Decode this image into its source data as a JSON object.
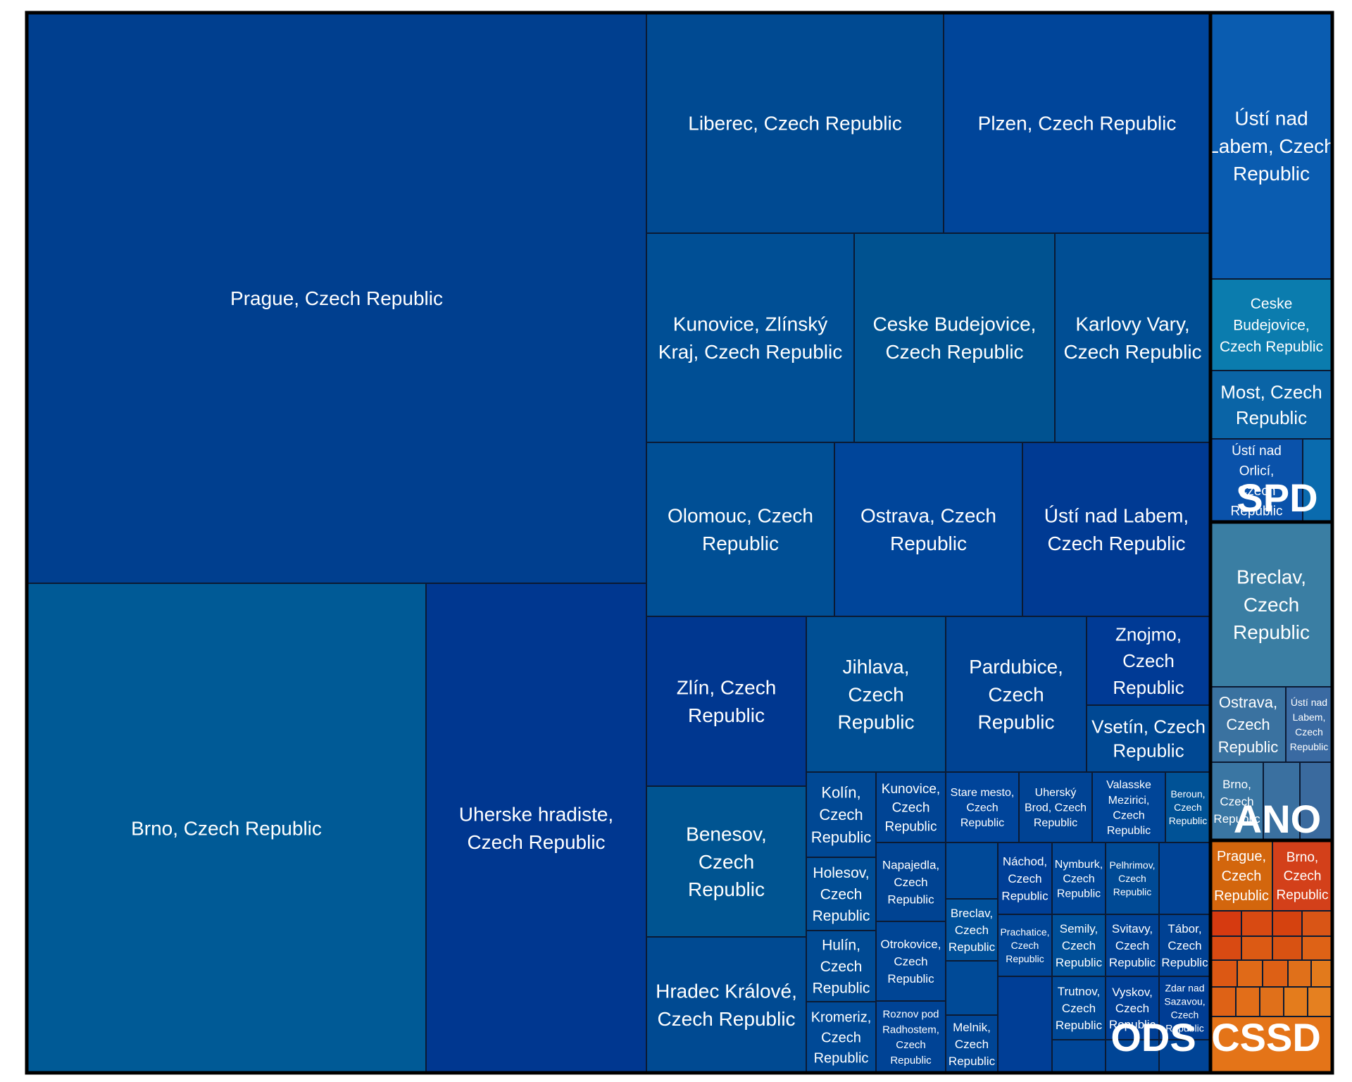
{
  "chart_data": {
    "type": "treemap",
    "groups": [
      {
        "name": "ODS",
        "items": [
          {
            "label": "Prague, Czech Republic",
            "color": "#003f8f"
          },
          {
            "label": "Brno, Czech Republic",
            "color": "#005a96"
          },
          {
            "label": "Uherske hradiste, Czech Republic",
            "color": "#003790"
          },
          {
            "label": "Liberec, Czech Republic",
            "color": "#004a92"
          },
          {
            "label": "Plzen, Czech Republic",
            "color": "#00459a"
          },
          {
            "label": "Kunovice, Zlínský Kraj, Czech Republic",
            "color": "#004f95"
          },
          {
            "label": "Ceske Budejovice, Czech Republic",
            "color": "#005290"
          },
          {
            "label": "Karlovy Vary, Czech Republic",
            "color": "#004e94"
          },
          {
            "label": "Olomouc, Czech Republic",
            "color": "#004f95"
          },
          {
            "label": "Ostrava, Czech Republic",
            "color": "#00459a"
          },
          {
            "label": "Ústí nad Labem, Czech Republic",
            "color": "#003a93"
          },
          {
            "label": "Zlín, Czech Republic",
            "color": "#003790"
          },
          {
            "label": "Jihlava, Czech Republic",
            "color": "#004f94"
          },
          {
            "label": "Pardubice, Czech Republic",
            "color": "#004393"
          },
          {
            "label": "Znojmo, Czech Republic",
            "color": "#003a95"
          },
          {
            "label": "Vsetín, Czech Republic",
            "color": "#004893"
          },
          {
            "label": "Benesov, Czech Republic",
            "color": "#005491"
          },
          {
            "label": "Hradec Králové, Czech Republic",
            "color": "#004a92"
          },
          {
            "label": "Kolín, Czech Republic",
            "color": "#004894"
          },
          {
            "label": "Kunovice, Czech Republic",
            "color": "#004494"
          },
          {
            "label": "Stare mesto, Czech Republic",
            "color": "#00449a"
          },
          {
            "label": "Uherský Brod, Czech Republic",
            "color": "#004394"
          },
          {
            "label": "Valasske Mezirici, Czech Republic",
            "color": "#004598"
          },
          {
            "label": "Beroun, Czech Republic",
            "color": "#005296"
          },
          {
            "label": "Holesov, Czech Republic",
            "color": "#004c94"
          },
          {
            "label": "Napajedla, Czech Republic",
            "color": "#004392"
          },
          {
            "label": "Náchod, Czech Republic",
            "color": "#003f97"
          },
          {
            "label": "Nymburk, Czech Republic",
            "color": "#004698"
          },
          {
            "label": "Pelhrimov, Czech Republic",
            "color": "#004a95"
          },
          {
            "label": "Hulín, Czech Republic",
            "color": "#004a93"
          },
          {
            "label": "Otrokovice, Czech Republic",
            "color": "#004595"
          },
          {
            "label": "Breclav, Czech Republic",
            "color": "#00509a"
          },
          {
            "label": "Prachatice, Czech Republic",
            "color": "#004597"
          },
          {
            "label": "Semily, Czech Republic",
            "color": "#004f98"
          },
          {
            "label": "Svitavy, Czech Republic",
            "color": "#004295"
          },
          {
            "label": "Tábor, Czech Republic",
            "color": "#004193"
          },
          {
            "label": "Trutnov, Czech Republic",
            "color": "#004896"
          },
          {
            "label": "Vyskov, Czech Republic",
            "color": "#003f95"
          },
          {
            "label": "Zdar nad Sazavou, Czech Republic",
            "color": "#003d94"
          },
          {
            "label": "Kromeriz, Czech Republic",
            "color": "#004996"
          },
          {
            "label": "Roznov pod Radhostem, Czech Republic",
            "color": "#004395"
          },
          {
            "label": "Melnik, Czech Republic",
            "color": "#004595"
          }
        ]
      },
      {
        "name": "SPD",
        "items": [
          {
            "label": "Ústí nad Labem, Czech Republic",
            "color": "#0a5cb0"
          },
          {
            "label": "Ceske Budejovice, Czech Republic",
            "color": "#0b7cae"
          },
          {
            "label": "Most, Czech Republic",
            "color": "#0a64a6"
          },
          {
            "label": "Ústí nad Orlicí, Czech Republic",
            "color": "#0a52aa"
          }
        ]
      },
      {
        "name": "ANO",
        "items": [
          {
            "label": "Breclav, Czech Republic",
            "color": "#3a7ea3"
          },
          {
            "label": "Ostrava, Czech Republic",
            "color": "#3a72a0"
          },
          {
            "label": "Ústí nad Labem, Czech Republic",
            "color": "#3a6aa2"
          },
          {
            "label": "Brno, Czech Republic",
            "color": "#3a76a3"
          }
        ]
      },
      {
        "name": "CSSD",
        "items": [
          {
            "label": "Prague, Czech Republic",
            "color": "#d3660d"
          },
          {
            "label": "Brno, Czech Republic",
            "color": "#d3401a"
          }
        ]
      }
    ]
  }
}
